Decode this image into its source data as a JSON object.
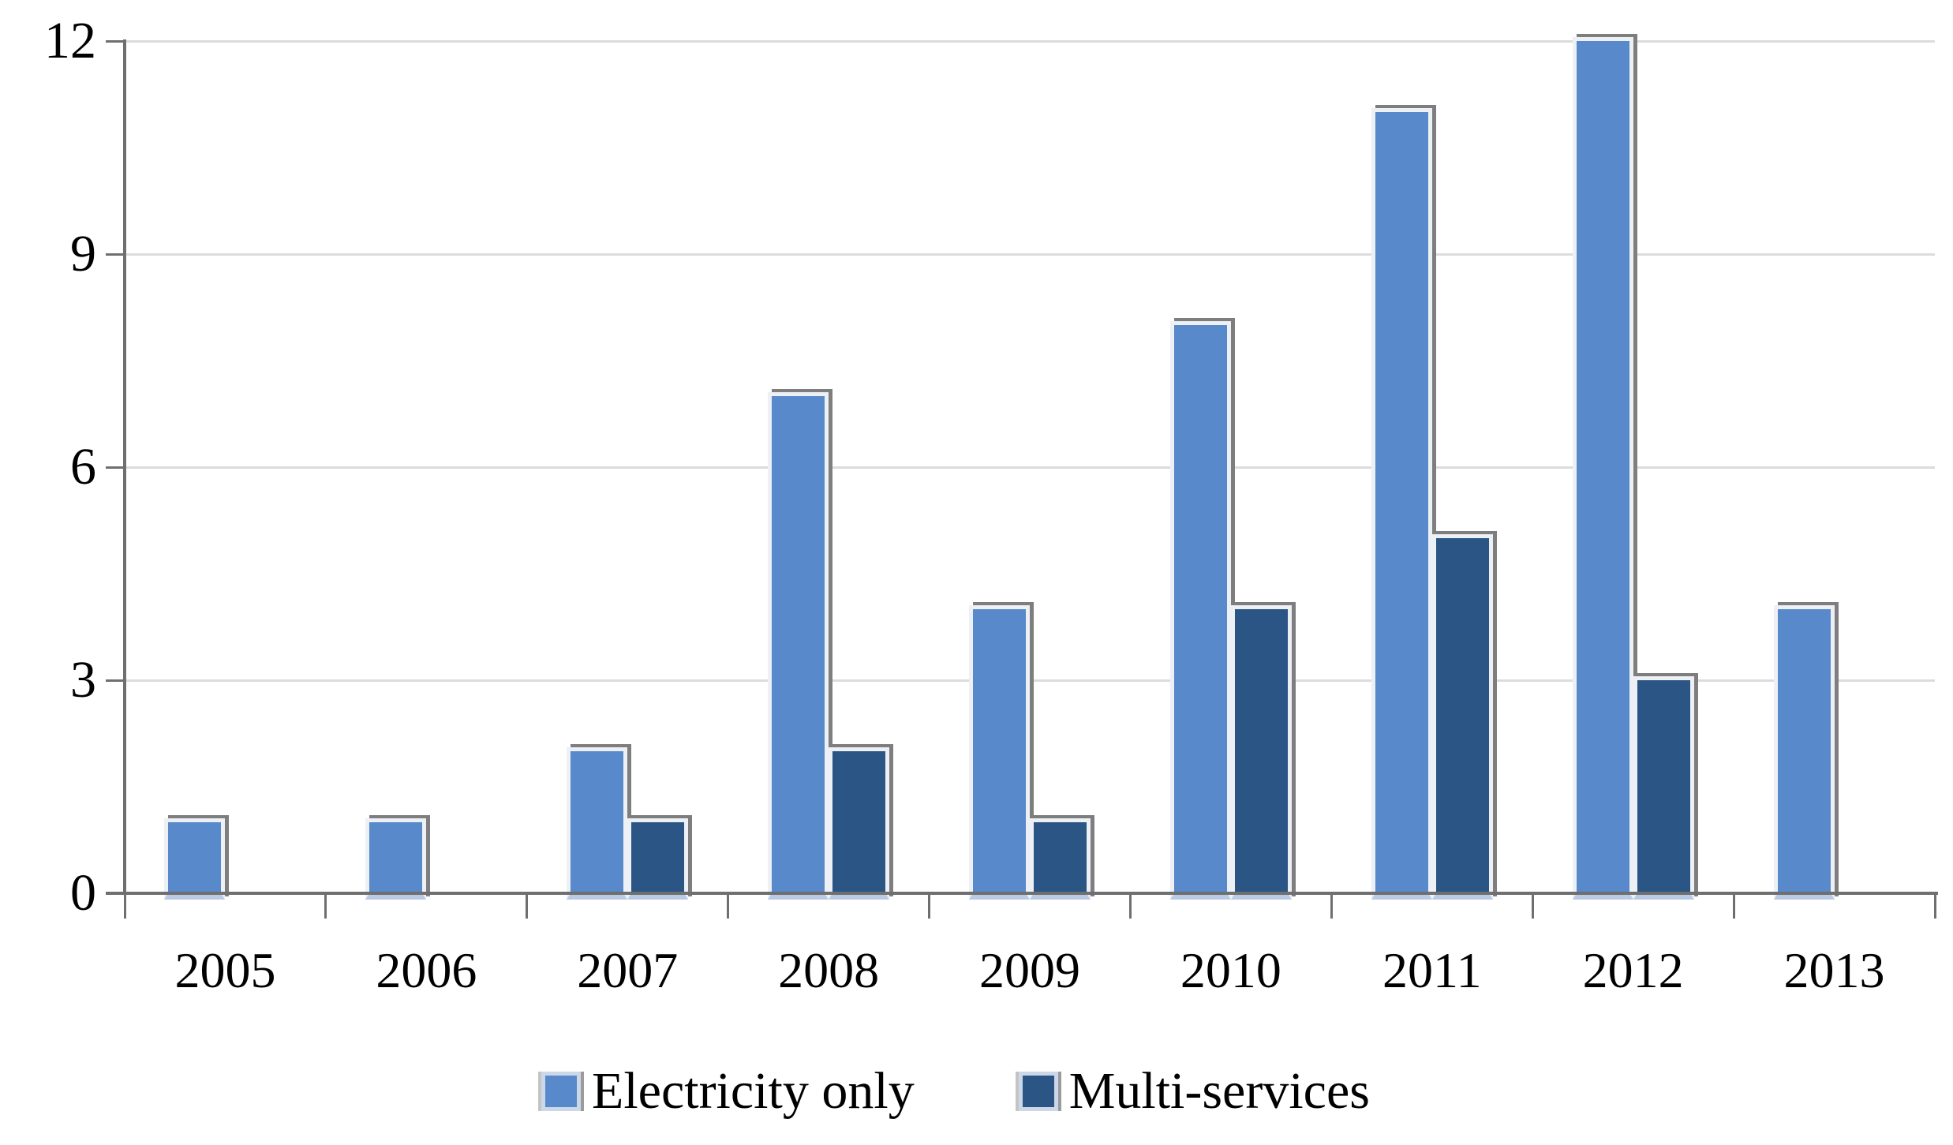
{
  "figure": {
    "background_color": "#ffffff",
    "gridline_color": "#dcdcdc",
    "axis_color": "#6f6f6f",
    "text_color": "#000000"
  },
  "chart_data": {
    "type": "bar",
    "title": "",
    "xlabel": "",
    "ylabel": "",
    "categories": [
      "2005",
      "2006",
      "2007",
      "2008",
      "2009",
      "2010",
      "2011",
      "2012",
      "2013"
    ],
    "series": [
      {
        "name": "Electricity only",
        "color": "#5889CB",
        "values": [
          1,
          1,
          2,
          7,
          4,
          8,
          11,
          12,
          4
        ]
      },
      {
        "name": "Multi-services",
        "color": "#2A5585",
        "values": [
          0,
          0,
          1,
          2,
          1,
          4,
          5,
          3,
          0
        ]
      }
    ],
    "y_ticks": [
      0,
      3,
      6,
      9,
      12
    ],
    "ylim": [
      0,
      12
    ],
    "grid": true,
    "legend_position": "bottom"
  }
}
